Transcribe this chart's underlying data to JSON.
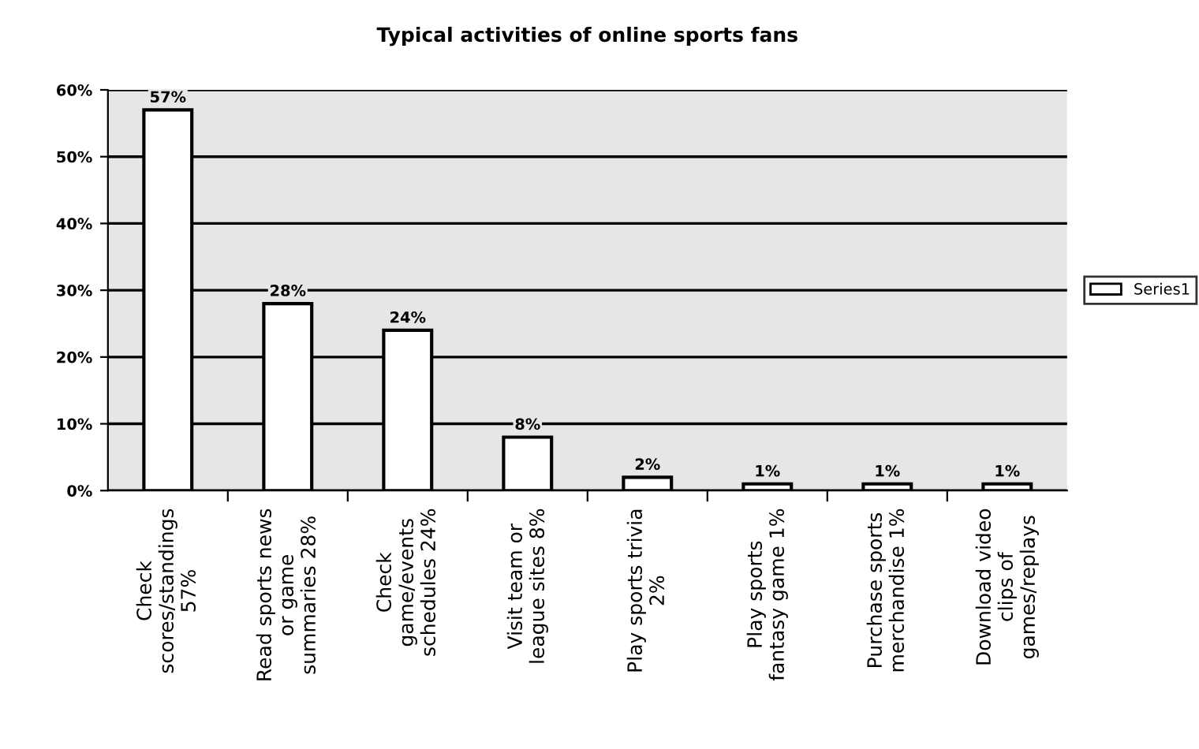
{
  "chart_data": {
    "type": "bar",
    "title": "Typical activities of online sports fans",
    "categories": [
      "Check\nscores/standings\n57%",
      "Read sports news\nor game\nsummaries 28%",
      "Check\ngame/events\nschedules 24%",
      "Visit team or\nleague sites 8%",
      "Play sports trivia\n2%",
      "Play sports\nfantasy game 1%",
      "Purchase sports\nmerchandise 1%",
      "Download video\nclips of\ngames/replays"
    ],
    "series": [
      {
        "name": "Series1",
        "color": "#ffffff",
        "values": [
          57,
          28,
          24,
          8,
          2,
          1,
          1,
          1
        ],
        "value_labels": [
          "57%",
          "28%",
          "24%",
          "8%",
          "2%",
          "1%",
          "1%",
          "1%"
        ]
      }
    ],
    "ylim": [
      0,
      60
    ],
    "yticks": [
      {
        "value": 0,
        "label": "0%"
      },
      {
        "value": 10,
        "label": "10%"
      },
      {
        "value": 20,
        "label": "20%"
      },
      {
        "value": 30,
        "label": "30%"
      },
      {
        "value": 40,
        "label": "40%"
      },
      {
        "value": 50,
        "label": "50%"
      },
      {
        "value": 60,
        "label": "60%"
      }
    ],
    "grid": "y",
    "legend": "right"
  }
}
